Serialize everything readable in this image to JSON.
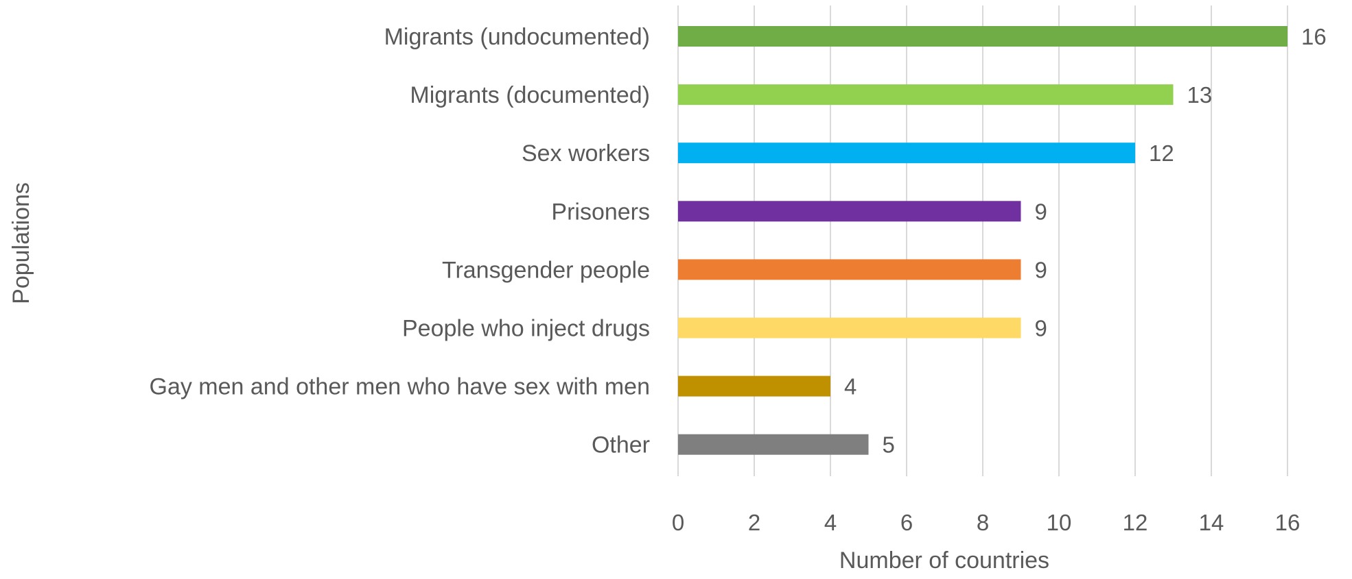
{
  "chart_data": {
    "type": "bar",
    "orientation": "horizontal",
    "categories": [
      "Migrants (undocumented)",
      "Migrants (documented)",
      "Sex workers",
      "Prisoners",
      "Transgender people",
      "People who inject drugs",
      "Gay men and other men who have sex with men",
      "Other"
    ],
    "values": [
      16,
      13,
      12,
      9,
      9,
      9,
      4,
      5
    ],
    "colors": [
      "#70AD47",
      "#92D050",
      "#00B0F0",
      "#7030A0",
      "#ED7D31",
      "#FFD966",
      "#BF9000",
      "#7F7F7F"
    ],
    "xlabel": "Number of countries",
    "ylabel": "Populations",
    "xlim": [
      0,
      16
    ],
    "xticks": [
      0,
      2,
      4,
      6,
      8,
      10,
      12,
      14,
      16
    ],
    "grid": "vertical",
    "data_labels": true,
    "legend": "none",
    "gridline_color": "#D9D9D9",
    "text_color": "#595959"
  }
}
